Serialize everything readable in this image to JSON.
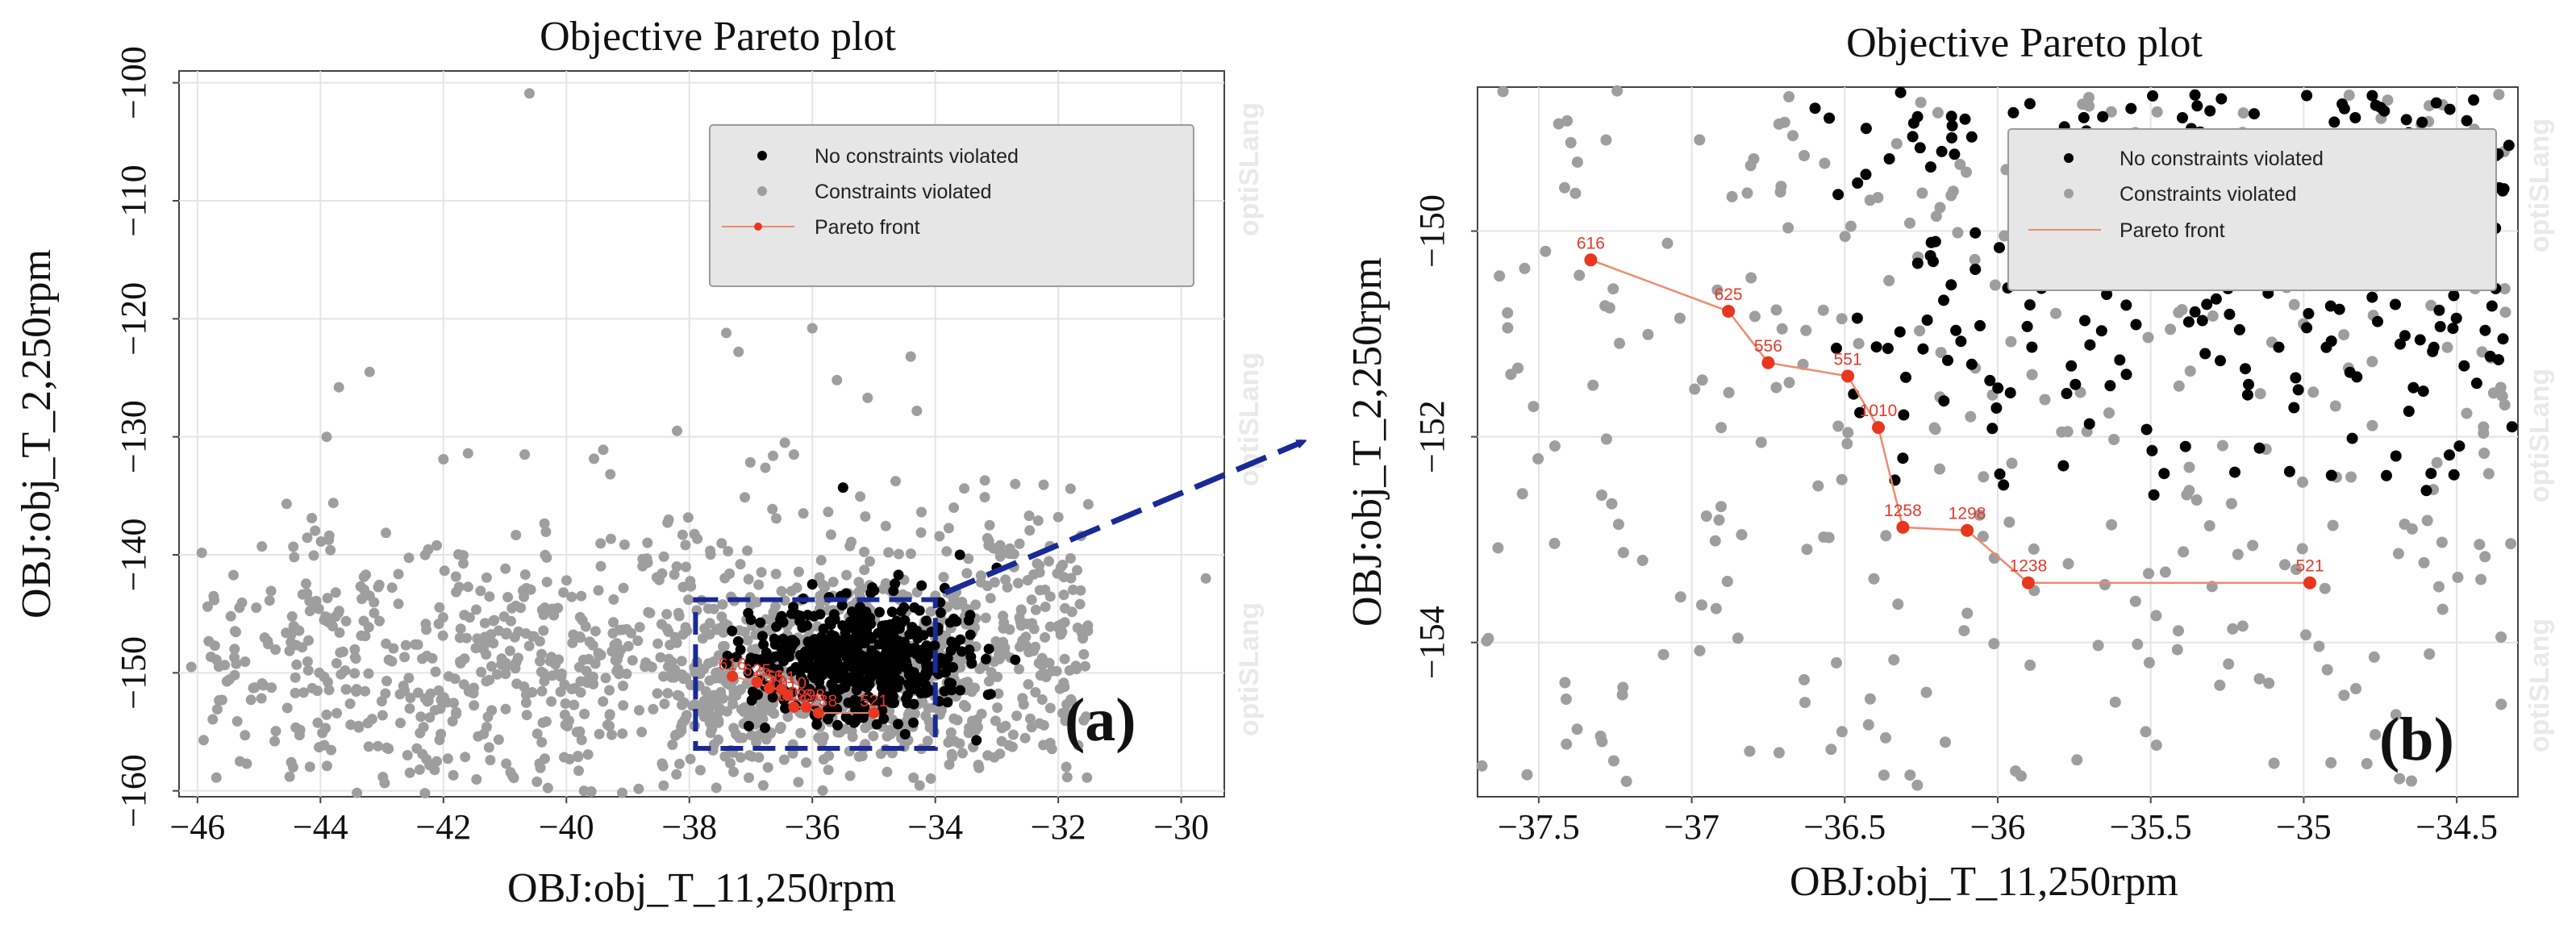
{
  "colors": {
    "no_violation": "#000000",
    "violation": "#9e9e9e",
    "pareto": "#e8361f",
    "pareto_line": "#f08a6c",
    "grid": "#e4e4e4",
    "zoom_box": "#1a2a94",
    "legend_bg": "#e6e6e6"
  },
  "watermark": "optiSLang",
  "arrow_icon": "dashed-arrow-icon",
  "chart_data": [
    {
      "panel": "a",
      "type": "scatter",
      "title": "Objective Pareto plot",
      "xlabel": "OBJ:obj_T_11,250rpm",
      "ylabel": "OBJ:obj_T_2,250rpm",
      "xlim": [
        -46.3,
        -29.3
      ],
      "ylim": [
        -160.5,
        -99.0
      ],
      "y_inverted": true,
      "xticks": [
        -46,
        -44,
        -42,
        -40,
        -38,
        -36,
        -34,
        -32,
        -30
      ],
      "xtick_labels": [
        "−46",
        "−44",
        "−42",
        "−40",
        "−38",
        "−36",
        "−34",
        "−32",
        "−30"
      ],
      "yticks": [
        -100,
        -110,
        -120,
        -130,
        -140,
        -150,
        -160
      ],
      "ytick_labels": [
        "−100",
        "−110",
        "−120",
        "−130",
        "−140",
        "−150",
        "−160"
      ],
      "grid": true,
      "legend": {
        "placement": "top-right",
        "entries": [
          "No constraints violated",
          "Constraints violated",
          "Pareto front"
        ]
      },
      "panel_tag": "(a)",
      "zoom_box": {
        "x": [
          -37.9,
          -34.0
        ],
        "y": [
          -156.4,
          -143.8
        ]
      },
      "series": [
        {
          "name": "Constraints violated",
          "points": [
            [
              -40.6,
              -100.9
            ],
            [
              -43.2,
              -124.5
            ],
            [
              -43.7,
              -125.8
            ],
            [
              -42.0,
              -131.9
            ],
            [
              -43.9,
              -130.0
            ],
            [
              -36.3,
              -131.5
            ],
            [
              -33.7,
              -136.0
            ],
            [
              -32.7,
              -134.0
            ],
            [
              -32.0,
              -136.8
            ],
            [
              -29.6,
              -142.0
            ],
            [
              -31.8,
              -140.3
            ],
            [
              -32.3,
              -143.0
            ],
            [
              -33.5,
              -145.9
            ],
            [
              -32.9,
              -147.4
            ],
            [
              -33.2,
              -149.3
            ],
            [
              -34.3,
              -127.8
            ],
            [
              -35.1,
              -126.7
            ],
            [
              -35.6,
              -125.2
            ],
            [
              -34.4,
              -123.2
            ],
            [
              -36.0,
              -120.8
            ],
            [
              -37.4,
              -121.2
            ],
            [
              -37.2,
              -122.8
            ],
            [
              -38.2,
              -129.5
            ],
            [
              -39.4,
              -131.1
            ],
            [
              -41.6,
              -131.4
            ],
            [
              -45.4,
              -148.7
            ],
            [
              -46.1,
              -149.5
            ],
            [
              -45.6,
              -152.3
            ],
            [
              -45.9,
              -155.7
            ],
            [
              -45.2,
              -157.7
            ],
            [
              -44.5,
              -158.8
            ],
            [
              -42.3,
              -160.2
            ],
            [
              -39.8,
              -158.3
            ],
            [
              -36.1,
              -157.6
            ],
            [
              -34.7,
              -156.8
            ],
            [
              -35.9,
              -155.5
            ]
          ]
        },
        {
          "name": "No constraints violated",
          "points": [
            [
              -35.5,
              -134.3
            ],
            [
              -33.6,
              -140.0
            ],
            [
              -33.0,
              -141.1
            ],
            [
              -34.6,
              -141.7
            ],
            [
              -36.0,
              -142.5
            ],
            [
              -32.7,
              -148.9
            ],
            [
              -33.1,
              -151.8
            ],
            [
              -33.8,
              -152.5
            ],
            [
              -37.0,
              -145.5
            ],
            [
              -36.5,
              -145.2
            ]
          ]
        },
        {
          "name": "Pareto front",
          "points": [
            [
              -37.3,
              -150.3
            ],
            [
              -36.9,
              -150.8
            ],
            [
              -36.7,
              -151.3
            ],
            [
              -36.5,
              -151.4
            ],
            [
              -36.4,
              -151.9
            ],
            [
              -36.3,
              -152.9
            ],
            [
              -36.1,
              -152.9
            ],
            [
              -35.9,
              -153.4
            ],
            [
              -35.0,
              -153.4
            ]
          ],
          "labels": [
            "616",
            "625",
            "556",
            "551",
            "1010",
            "1258",
            "1298",
            "1238",
            "521"
          ]
        }
      ]
    },
    {
      "panel": "b",
      "type": "scatter",
      "title": "Objective Pareto plot",
      "xlabel": "OBJ:obj_T_11,250rpm",
      "ylabel": "OBJ:obj_T_2,250rpm",
      "xlim": [
        -37.7,
        -34.3
      ],
      "ylim": [
        -155.5,
        -148.6
      ],
      "y_inverted": true,
      "xticks": [
        -37.5,
        -37,
        -36.5,
        -36,
        -35.5,
        -35,
        -34.5
      ],
      "xtick_labels": [
        "−37.5",
        "−37",
        "−36.5",
        "−36",
        "−35.5",
        "−35",
        "−34.5"
      ],
      "yticks": [
        -150,
        -152,
        -154
      ],
      "ytick_labels": [
        "−150",
        "−152",
        "−154"
      ],
      "grid": true,
      "legend": {
        "placement": "top-right",
        "entries": [
          "No constraints violated",
          "Constraints violated",
          "Pareto front"
        ]
      },
      "panel_tag": "(b)",
      "series": [
        {
          "name": "Pareto front",
          "points": [
            [
              -37.33,
              -150.28
            ],
            [
              -36.88,
              -150.78
            ],
            [
              -36.75,
              -151.28
            ],
            [
              -36.49,
              -151.41
            ],
            [
              -36.39,
              -151.91
            ],
            [
              -36.31,
              -152.88
            ],
            [
              -36.1,
              -152.91
            ],
            [
              -35.9,
              -153.42
            ],
            [
              -34.98,
              -153.42
            ]
          ],
          "labels": [
            "616",
            "625",
            "556",
            "551",
            "1010",
            "1258",
            "1298",
            "1238",
            "521"
          ]
        }
      ]
    }
  ]
}
